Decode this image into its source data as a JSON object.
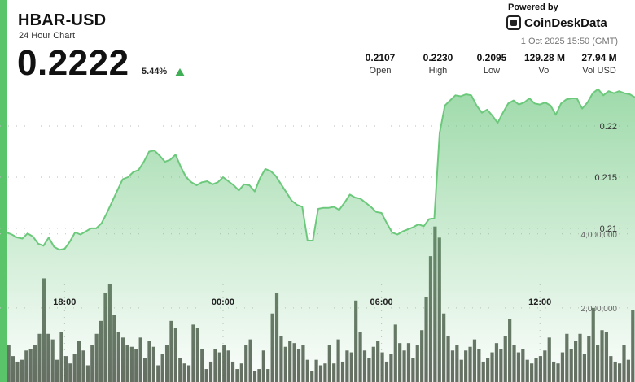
{
  "header": {
    "pair": "HBAR-USD",
    "subtitle": "24 Hour Chart",
    "price": "0.2222",
    "change": "5.44%",
    "powered_by": "Powered by",
    "brand": "CoinDeskData",
    "timestamp": "1 Oct 2025 15:50 (GMT)"
  },
  "stats": [
    {
      "value": "0.2107",
      "label": "Open"
    },
    {
      "value": "0.2230",
      "label": "High"
    },
    {
      "value": "0.2095",
      "label": "Low"
    },
    {
      "value": "129.28 M",
      "label": "Vol"
    },
    {
      "value": "27.94 M",
      "label": "Vol USD"
    }
  ],
  "colors": {
    "accent": "#59c46a",
    "up_arrow": "#3fae55",
    "line": "#6cc97c",
    "fill_top": "#68c57a",
    "volume_bar": "#4a5447"
  },
  "icons": {
    "change_arrow": "triangle-up-icon",
    "brand_logo": "coindesk-logo-icon"
  },
  "chart_data": {
    "type": "line",
    "x_ticks": [
      "18:00",
      "00:00",
      "06:00",
      "12:00"
    ],
    "x_tick_hours": [
      2.2,
      8.2,
      14.2,
      20.2
    ],
    "x_range_hours": [
      0,
      23.8
    ],
    "price_ticks": [
      "0.22",
      "0.215",
      "0.21"
    ],
    "price_tick_values": [
      0.22,
      0.215,
      0.21
    ],
    "volume_ticks": [
      "4,000,000",
      "2,000,000"
    ],
    "volume_tick_values": [
      4000000,
      2000000
    ],
    "ylim_price": [
      0.2061,
      0.2231
    ],
    "ylim_volume": [
      0,
      4500000
    ],
    "grid": true,
    "price_series": [
      [
        0.0,
        0.2096
      ],
      [
        0.2,
        0.2094
      ],
      [
        0.4,
        0.2091
      ],
      [
        0.6,
        0.209
      ],
      [
        0.8,
        0.2095
      ],
      [
        1.0,
        0.2092
      ],
      [
        1.2,
        0.2085
      ],
      [
        1.4,
        0.2083
      ],
      [
        1.6,
        0.2091
      ],
      [
        1.8,
        0.2082
      ],
      [
        2.0,
        0.2079
      ],
      [
        2.2,
        0.208
      ],
      [
        2.4,
        0.2087
      ],
      [
        2.6,
        0.2096
      ],
      [
        2.8,
        0.2094
      ],
      [
        3.0,
        0.2097
      ],
      [
        3.2,
        0.21
      ],
      [
        3.4,
        0.21
      ],
      [
        3.6,
        0.2105
      ],
      [
        3.8,
        0.2115
      ],
      [
        4.0,
        0.2126
      ],
      [
        4.2,
        0.2137
      ],
      [
        4.4,
        0.2148
      ],
      [
        4.6,
        0.215
      ],
      [
        4.8,
        0.2155
      ],
      [
        5.0,
        0.2157
      ],
      [
        5.2,
        0.2165
      ],
      [
        5.4,
        0.2175
      ],
      [
        5.6,
        0.2176
      ],
      [
        5.8,
        0.2171
      ],
      [
        6.0,
        0.2165
      ],
      [
        6.2,
        0.2167
      ],
      [
        6.4,
        0.2172
      ],
      [
        6.6,
        0.216
      ],
      [
        6.8,
        0.215
      ],
      [
        7.0,
        0.2145
      ],
      [
        7.2,
        0.2142
      ],
      [
        7.4,
        0.2145
      ],
      [
        7.6,
        0.2146
      ],
      [
        7.8,
        0.2143
      ],
      [
        8.0,
        0.2145
      ],
      [
        8.2,
        0.215
      ],
      [
        8.4,
        0.2146
      ],
      [
        8.6,
        0.2142
      ],
      [
        8.8,
        0.2137
      ],
      [
        9.0,
        0.2143
      ],
      [
        9.2,
        0.2142
      ],
      [
        9.4,
        0.2136
      ],
      [
        9.6,
        0.2149
      ],
      [
        9.8,
        0.2158
      ],
      [
        10.0,
        0.2156
      ],
      [
        10.2,
        0.2151
      ],
      [
        10.4,
        0.2143
      ],
      [
        10.6,
        0.2135
      ],
      [
        10.8,
        0.2127
      ],
      [
        11.0,
        0.2123
      ],
      [
        11.2,
        0.2121
      ],
      [
        11.4,
        0.2088
      ],
      [
        11.6,
        0.2088
      ],
      [
        11.8,
        0.2119
      ],
      [
        12.0,
        0.212
      ],
      [
        12.2,
        0.212
      ],
      [
        12.4,
        0.2121
      ],
      [
        12.6,
        0.2118
      ],
      [
        12.8,
        0.2125
      ],
      [
        13.0,
        0.2133
      ],
      [
        13.2,
        0.213
      ],
      [
        13.4,
        0.2129
      ],
      [
        13.6,
        0.2125
      ],
      [
        13.8,
        0.2121
      ],
      [
        14.0,
        0.2116
      ],
      [
        14.2,
        0.2115
      ],
      [
        14.4,
        0.2105
      ],
      [
        14.6,
        0.2096
      ],
      [
        14.8,
        0.2094
      ],
      [
        15.0,
        0.2097
      ],
      [
        15.2,
        0.2099
      ],
      [
        15.4,
        0.2101
      ],
      [
        15.6,
        0.2104
      ],
      [
        15.8,
        0.2102
      ],
      [
        16.0,
        0.2109
      ],
      [
        16.2,
        0.211
      ],
      [
        16.4,
        0.2193
      ],
      [
        16.6,
        0.222
      ],
      [
        16.8,
        0.2225
      ],
      [
        17.0,
        0.223
      ],
      [
        17.2,
        0.2229
      ],
      [
        17.4,
        0.2231
      ],
      [
        17.6,
        0.223
      ],
      [
        17.8,
        0.222
      ],
      [
        18.0,
        0.2213
      ],
      [
        18.2,
        0.2216
      ],
      [
        18.4,
        0.221
      ],
      [
        18.6,
        0.2203
      ],
      [
        18.8,
        0.2213
      ],
      [
        19.0,
        0.2222
      ],
      [
        19.2,
        0.2225
      ],
      [
        19.4,
        0.2221
      ],
      [
        19.6,
        0.2223
      ],
      [
        19.8,
        0.2227
      ],
      [
        20.0,
        0.2222
      ],
      [
        20.2,
        0.2221
      ],
      [
        20.4,
        0.2223
      ],
      [
        20.6,
        0.222
      ],
      [
        20.8,
        0.2211
      ],
      [
        21.0,
        0.2222
      ],
      [
        21.2,
        0.2226
      ],
      [
        21.4,
        0.2227
      ],
      [
        21.6,
        0.2227
      ],
      [
        21.8,
        0.2217
      ],
      [
        22.0,
        0.2223
      ],
      [
        22.2,
        0.2232
      ],
      [
        22.4,
        0.2236
      ],
      [
        22.6,
        0.223
      ],
      [
        22.8,
        0.2234
      ],
      [
        23.0,
        0.2232
      ],
      [
        23.2,
        0.2234
      ],
      [
        23.4,
        0.2232
      ],
      [
        23.6,
        0.2231
      ],
      [
        23.8,
        0.2228
      ]
    ],
    "volume_bars": [
      1000000,
      700000,
      550000,
      600000,
      850000,
      900000,
      1000000,
      1300000,
      2800000,
      1300000,
      1150000,
      600000,
      1350000,
      700000,
      500000,
      750000,
      1100000,
      850000,
      450000,
      1000000,
      1300000,
      1650000,
      2400000,
      2650000,
      1800000,
      1350000,
      1200000,
      1000000,
      950000,
      900000,
      1200000,
      650000,
      1100000,
      950000,
      450000,
      750000,
      1000000,
      1650000,
      1450000,
      650000,
      500000,
      450000,
      1550000,
      1450000,
      900000,
      350000,
      550000,
      900000,
      800000,
      1000000,
      850000,
      550000,
      350000,
      500000,
      1000000,
      1150000,
      300000,
      350000,
      850000,
      350000,
      1850000,
      2400000,
      1250000,
      950000,
      1100000,
      1050000,
      900000,
      1000000,
      600000,
      300000,
      600000,
      450000,
      500000,
      1000000,
      500000,
      1150000,
      550000,
      850000,
      800000,
      2200000,
      1350000,
      850000,
      650000,
      950000,
      1100000,
      800000,
      550000,
      750000,
      1550000,
      1050000,
      850000,
      1050000,
      650000,
      1000000,
      1400000,
      2300000,
      3400000,
      4200000,
      3900000,
      1850000,
      1250000,
      850000,
      1000000,
      600000,
      850000,
      950000,
      1150000,
      900000,
      550000,
      650000,
      800000,
      1050000,
      900000,
      1250000,
      1700000,
      1000000,
      800000,
      900000,
      600000,
      500000,
      650000,
      700000,
      850000,
      1200000,
      550000,
      500000,
      800000,
      1300000,
      900000,
      1100000,
      1300000,
      750000,
      1250000,
      2000000,
      1000000,
      1400000,
      1350000,
      700000,
      550000,
      500000,
      1000000,
      600000,
      1950000
    ]
  }
}
